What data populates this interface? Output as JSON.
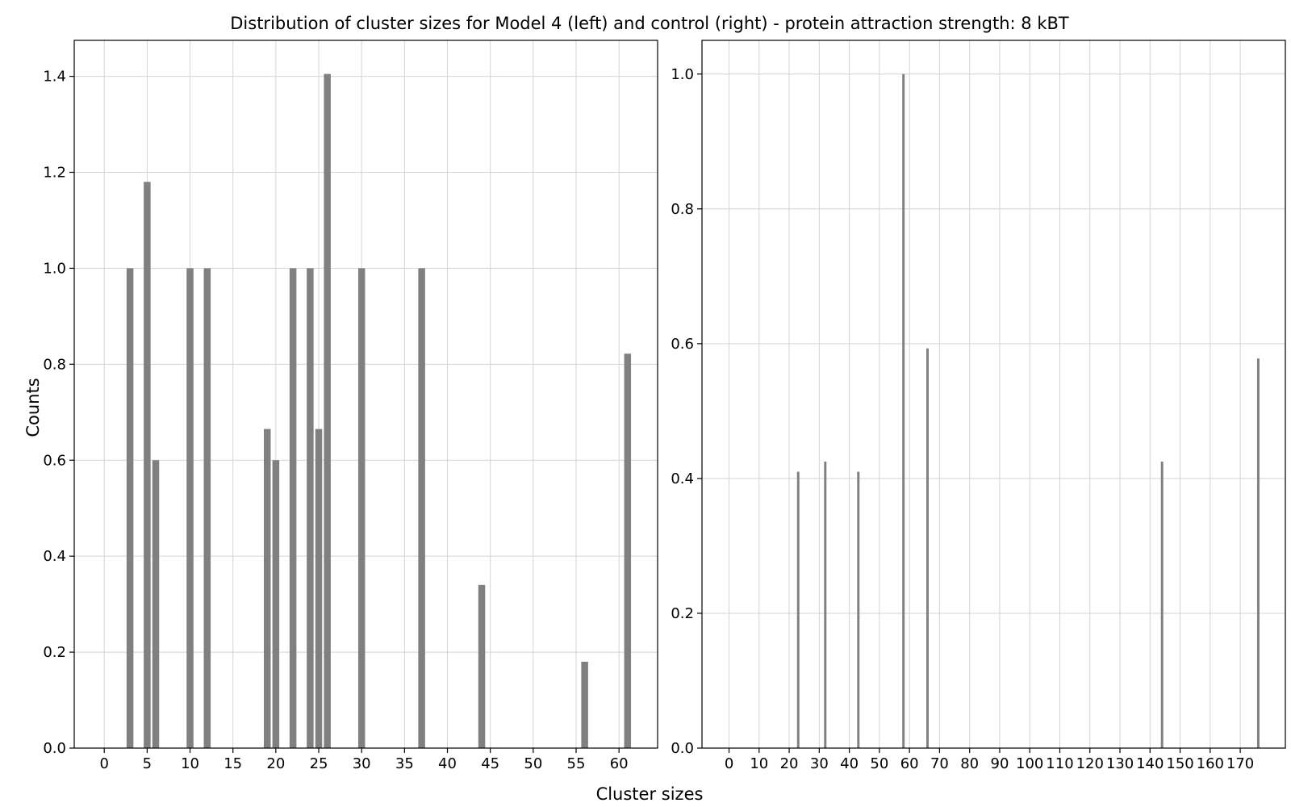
{
  "figure": {
    "title": "Distribution of cluster sizes for Model 4 (left) and control (right) - protein attraction strength: 8 kBT",
    "xlabel": "Cluster sizes",
    "ylabel": "Counts"
  },
  "colors": {
    "bar": "#808080",
    "grid": "#d3d3d3",
    "axis": "#000000",
    "background": "#ffffff"
  },
  "chart_data": [
    {
      "type": "bar",
      "panel": "left",
      "title": "",
      "xlabel": "",
      "ylabel": "Counts",
      "xlim": [
        -3.5,
        64.5
      ],
      "ylim": [
        0,
        1.475
      ],
      "grid": true,
      "bar_width": 0.8,
      "xticks": [
        0,
        5,
        10,
        15,
        20,
        25,
        30,
        35,
        40,
        45,
        50,
        55,
        60
      ],
      "xtick_labels": [
        "0",
        "5",
        "10",
        "15",
        "20",
        "25",
        "30",
        "35",
        "40",
        "45",
        "50",
        "55",
        "60"
      ],
      "yticks": [
        0.0,
        0.2,
        0.4,
        0.6,
        0.8,
        1.0,
        1.2,
        1.4
      ],
      "ytick_labels": [
        "0.0",
        "0.2",
        "0.4",
        "0.6",
        "0.8",
        "1.0",
        "1.2",
        "1.4"
      ],
      "x": [
        3,
        5,
        6,
        10,
        12,
        19,
        20,
        22,
        24,
        25,
        26,
        30,
        37,
        44,
        56,
        61
      ],
      "values": [
        1.0,
        1.18,
        0.6,
        1.0,
        1.0,
        0.665,
        0.6,
        1.0,
        1.0,
        0.665,
        1.405,
        1.0,
        1.0,
        0.34,
        0.18,
        0.822
      ]
    },
    {
      "type": "bar",
      "panel": "right",
      "title": "",
      "xlabel": "",
      "ylabel": "",
      "xlim": [
        -9,
        185
      ],
      "ylim": [
        0,
        1.05
      ],
      "grid": true,
      "bar_width": 0.8,
      "xticks": [
        0,
        10,
        20,
        30,
        40,
        50,
        60,
        70,
        80,
        90,
        100,
        110,
        120,
        130,
        140,
        150,
        160,
        170
      ],
      "xtick_labels": [
        "0",
        "10",
        "20",
        "30",
        "40",
        "50",
        "60",
        "70",
        "80",
        "90",
        "100",
        "110",
        "120",
        "130",
        "140",
        "150",
        "160",
        "170"
      ],
      "yticks": [
        0.0,
        0.2,
        0.4,
        0.6,
        0.8,
        1.0
      ],
      "ytick_labels": [
        "0.0",
        "0.2",
        "0.4",
        "0.6",
        "0.8",
        "1.0"
      ],
      "x": [
        23,
        32,
        43,
        58,
        66,
        144,
        176
      ],
      "values": [
        0.41,
        0.425,
        0.41,
        1.0,
        0.593,
        0.425,
        0.578
      ]
    }
  ]
}
